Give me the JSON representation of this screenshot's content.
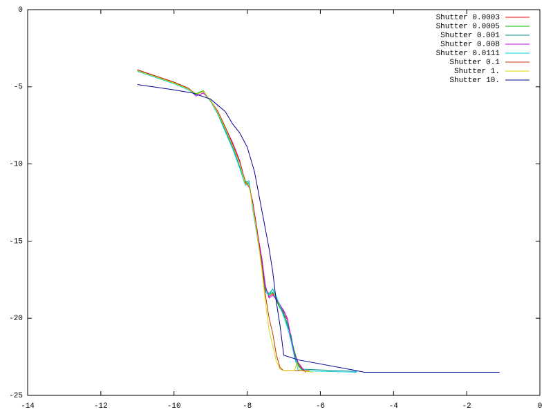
{
  "chart_data": {
    "type": "line",
    "xlim": [
      -14,
      0
    ],
    "ylim": [
      -25,
      0
    ],
    "xticks": [
      -14,
      -12,
      -10,
      -8,
      -6,
      -4,
      -2,
      0
    ],
    "yticks": [
      -25,
      -20,
      -15,
      -10,
      -5,
      0
    ],
    "legend": "top-right",
    "series": [
      {
        "name": "Shutter 0.0003",
        "color": "#ff0000",
        "x": [
          -11,
          -10,
          -9.6,
          -9.4,
          -9.2,
          -9,
          -8.8,
          -8.6,
          -8.4,
          -8.2,
          -8.05,
          -7.95,
          -7.85,
          -7.7,
          -7.6,
          -7.5,
          -7.4,
          -7.3,
          -7.2,
          -7,
          -6.9,
          -6.8,
          -6.7,
          -6.6,
          -6.5,
          -6.4
        ],
        "values": [
          -3.9,
          -4.7,
          -5.1,
          -5.5,
          -5.3,
          -5.9,
          -6.6,
          -7.6,
          -8.7,
          -9.9,
          -11.3,
          -11.4,
          -12.5,
          -14.8,
          -16.2,
          -18,
          -18.6,
          -18.4,
          -18.8,
          -19.7,
          -20.1,
          -21.2,
          -22.3,
          -22.9,
          -23.3,
          -23.5
        ]
      },
      {
        "name": "Shutter 0.0005",
        "color": "#00c000",
        "x": [
          -11,
          -10,
          -9.6,
          -9.4,
          -9.2,
          -9,
          -8.8,
          -8.6,
          -8.4,
          -8.2,
          -8.05,
          -7.95,
          -7.85,
          -7.7,
          -7.6,
          -7.5,
          -7.4,
          -7.3,
          -7.2,
          -7,
          -6.9,
          -6.8,
          -6.7,
          -6.6,
          -6.5
        ],
        "values": [
          -3.95,
          -4.75,
          -5.15,
          -5.45,
          -5.25,
          -5.95,
          -6.7,
          -7.7,
          -8.8,
          -10,
          -11.1,
          -11.3,
          -12.6,
          -14.9,
          -16.3,
          -18.1,
          -18.5,
          -18.3,
          -18.9,
          -19.8,
          -20.3,
          -21.3,
          -22.2,
          -23,
          -23.4
        ]
      },
      {
        "name": "Shutter 0.001",
        "color": "#009090",
        "x": [
          -11,
          -10,
          -9.6,
          -9.4,
          -9.2,
          -9,
          -8.8,
          -8.6,
          -8.4,
          -8.2,
          -8.05,
          -7.95,
          -7.85,
          -7.7,
          -7.6,
          -7.5,
          -7.4,
          -7.3,
          -7.2,
          -7,
          -6.9,
          -6.8,
          -6.7,
          -6.6,
          -6.5,
          -5
        ],
        "values": [
          -3.95,
          -4.7,
          -5.1,
          -5.5,
          -5.3,
          -5.9,
          -6.7,
          -7.8,
          -8.9,
          -10.2,
          -11.2,
          -11.1,
          -12.8,
          -15,
          -16.6,
          -18.2,
          -18.4,
          -18.1,
          -18.7,
          -19.6,
          -20.5,
          -21.1,
          -22.5,
          -23.1,
          -23.3,
          -23.45
        ]
      },
      {
        "name": "Shutter 0.008",
        "color": "#c000ff",
        "x": [
          -11,
          -10,
          -9.6,
          -9.4,
          -9.2,
          -9,
          -8.8,
          -8.6,
          -8.4,
          -8.2,
          -8.05,
          -7.95,
          -7.85,
          -7.7,
          -7.6,
          -7.5,
          -7.4,
          -7.3,
          -7.2,
          -7,
          -6.9,
          -6.8,
          -6.7,
          -6.6,
          -6.5,
          -6.4
        ],
        "values": [
          -3.9,
          -4.7,
          -5.1,
          -5.6,
          -5.4,
          -5.9,
          -6.6,
          -7.6,
          -8.6,
          -9.8,
          -11.2,
          -11.5,
          -12.4,
          -14.7,
          -16.1,
          -17.9,
          -18.7,
          -18.5,
          -18.8,
          -19.5,
          -20,
          -21.4,
          -22.4,
          -22.9,
          -23.2,
          -23.5
        ]
      },
      {
        "name": "Shutter 0.0111",
        "color": "#00d0e0",
        "x": [
          -11,
          -10,
          -9.6,
          -9.4,
          -9.2,
          -9,
          -8.8,
          -8.6,
          -8.4,
          -8.2,
          -8.05,
          -7.95,
          -7.85,
          -7.7,
          -7.6,
          -7.5,
          -7.4,
          -7.3,
          -7.2,
          -7,
          -6.9,
          -6.8,
          -6.7,
          -6.6,
          -5
        ],
        "values": [
          -4,
          -4.8,
          -5.2,
          -5.5,
          -5.3,
          -5.95,
          -6.8,
          -7.9,
          -9,
          -10.3,
          -11.4,
          -11.2,
          -12.9,
          -15.1,
          -16.7,
          -18.3,
          -18.5,
          -18.1,
          -18.6,
          -19.9,
          -20.6,
          -21.5,
          -22.6,
          -23.4,
          -23.5
        ]
      },
      {
        "name": "Shutter 0.1",
        "color": "#c03000",
        "x": [
          -11,
          -10,
          -9.6,
          -9.4,
          -9.2,
          -9,
          -8.8,
          -8.6,
          -8.4,
          -8.2,
          -8.05,
          -7.95,
          -7.85,
          -7.7,
          -7.6,
          -7.5,
          -7.4,
          -7.3,
          -7.2,
          -7.1,
          -7,
          -6.6,
          -6.3
        ],
        "values": [
          -3.9,
          -4.7,
          -5.1,
          -5.5,
          -5.3,
          -5.9,
          -6.6,
          -7.6,
          -8.7,
          -9.9,
          -11.2,
          -11.4,
          -12.5,
          -14.8,
          -16.5,
          -18.5,
          -20,
          -21,
          -22.4,
          -23.2,
          -23.4,
          -23.4,
          -23.4
        ]
      },
      {
        "name": "Shutter 1.",
        "color": "#d8d800",
        "x": [
          -11,
          -10,
          -9.6,
          -9.4,
          -9.2,
          -9,
          -8.8,
          -8.6,
          -8.4,
          -8.2,
          -8.05,
          -7.95,
          -7.85,
          -7.7,
          -7.6,
          -7.5,
          -7.4,
          -7.3,
          -7.2,
          -7.1,
          -7,
          -6.7,
          -6.65,
          -6.55,
          -6.2
        ],
        "values": [
          -3.95,
          -4.75,
          -5.15,
          -5.5,
          -5.3,
          -5.9,
          -6.7,
          -7.7,
          -8.8,
          -10,
          -11.3,
          -11.4,
          -12.7,
          -15,
          -16.8,
          -19,
          -20.8,
          -21.8,
          -22.8,
          -23.3,
          -23.4,
          -23.4,
          -22.9,
          -23.4,
          -23.5
        ]
      },
      {
        "name": "Shutter 10.",
        "color": "#000090",
        "x": [
          -11,
          -10,
          -9.5,
          -9,
          -8.6,
          -8.4,
          -8.2,
          -8,
          -7.8,
          -7.6,
          -7.4,
          -7.3,
          -7.2,
          -7.1,
          -7,
          -6.6,
          -5,
          -4.8,
          -1.1
        ],
        "values": [
          -4.85,
          -5.2,
          -5.4,
          -5.8,
          -6.6,
          -7.4,
          -8,
          -8.9,
          -10.5,
          -13,
          -15.5,
          -17,
          -19,
          -20.5,
          -22.4,
          -22.7,
          -23.4,
          -23.5,
          -23.5
        ]
      }
    ]
  }
}
